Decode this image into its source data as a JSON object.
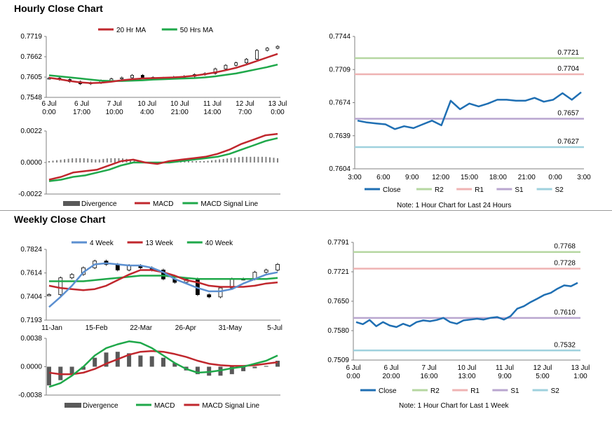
{
  "titles": {
    "hourly": "Hourly Close Chart",
    "weekly": "Weekly Close Chart"
  },
  "colors": {
    "ma_short": "#c0272d",
    "ma_long": "#1fa84a",
    "ma_4wk": "#5b8fd0",
    "close": "#1f6fb3",
    "r2": "#b6d7a1",
    "r1": "#efb3b3",
    "s1": "#b9a6cf",
    "s2": "#9fd1de",
    "divergence": "#808080"
  },
  "notes": {
    "hourly": "Note: 1 Hour Chart for Last 24 Hours",
    "weekly": "Note: 1 Hour Chart for Last 1 Week"
  },
  "chart_data": [
    {
      "id": "hourly_price",
      "type": "candlestick",
      "legend": [
        "20 Hr MA",
        "50 Hrs MA"
      ],
      "y_ticks": [
        "0.7719",
        "0.7662",
        "0.7605",
        "0.7548"
      ],
      "ylim": [
        0.7548,
        0.7719
      ],
      "x_ticks": [
        [
          "6 Jul",
          "0:00"
        ],
        [
          "6 Jul",
          "17:00"
        ],
        [
          "7 Jul",
          "10:00"
        ],
        [
          "10 Jul",
          "4:00"
        ],
        [
          "10 Jul",
          "21:00"
        ],
        [
          "11 Jul",
          "14:00"
        ],
        [
          "12 Jul",
          "7:00"
        ],
        [
          "13 Jul",
          "0:00"
        ]
      ],
      "series": [
        {
          "name": "20 Hr MA",
          "values": [
            0.7603,
            0.7599,
            0.7594,
            0.759,
            0.7588,
            0.7589,
            0.7592,
            0.7596,
            0.7599,
            0.7601,
            0.7602,
            0.7603,
            0.7604,
            0.7606,
            0.7609,
            0.7613,
            0.7618,
            0.7624,
            0.7631,
            0.764,
            0.765,
            0.766,
            0.767
          ]
        },
        {
          "name": "50 Hrs MA",
          "values": [
            0.761,
            0.7607,
            0.7604,
            0.7601,
            0.7598,
            0.7595,
            0.7594,
            0.7594,
            0.7595,
            0.7596,
            0.7598,
            0.7599,
            0.76,
            0.7601,
            0.7602,
            0.7604,
            0.7607,
            0.7611,
            0.7615,
            0.7621,
            0.7627,
            0.7633,
            0.764
          ]
        },
        {
          "name": "Close",
          "values": [
            0.7602,
            0.7598,
            0.7592,
            0.7586,
            0.7589,
            0.7595,
            0.76,
            0.7603,
            0.761,
            0.7604,
            0.7601,
            0.7602,
            0.7605,
            0.7607,
            0.7612,
            0.7615,
            0.7628,
            0.7638,
            0.7645,
            0.7655,
            0.768,
            0.7686,
            0.7691
          ]
        }
      ]
    },
    {
      "id": "hourly_macd",
      "type": "bar+line",
      "legend": [
        "Divergence",
        "MACD",
        "MACD Signal Line"
      ],
      "y_ticks": [
        "0.0022",
        "0.0000",
        "-0.0022"
      ],
      "ylim": [
        -0.0022,
        0.0022
      ],
      "series": [
        {
          "name": "MACD",
          "values": [
            -0.0012,
            -0.001,
            -0.0007,
            -0.0006,
            -0.0005,
            -0.0002,
            0.0001,
            0.0002,
            0.0,
            -0.0001,
            0.0001,
            0.0002,
            0.0003,
            0.0004,
            0.0006,
            0.0009,
            0.0013,
            0.0016,
            0.0019,
            0.002
          ]
        },
        {
          "name": "MACD Signal Line",
          "values": [
            -0.0013,
            -0.0012,
            -0.001,
            -0.0009,
            -0.0007,
            -0.0005,
            -0.0002,
            0.0,
            0.0,
            0.0,
            0.0,
            0.0001,
            0.0002,
            0.0003,
            0.0004,
            0.0006,
            0.0009,
            0.0012,
            0.0015,
            0.0017
          ]
        },
        {
          "name": "Divergence",
          "values": [
            0.0001,
            0.0002,
            0.0003,
            0.0003,
            0.0002,
            0.0003,
            0.0003,
            0.0002,
            0.0,
            -0.0001,
            0.0001,
            0.0001,
            0.0001,
            0.0001,
            0.0002,
            0.0003,
            0.0004,
            0.0004,
            0.0004,
            0.0003
          ]
        }
      ]
    },
    {
      "id": "hourly_24h",
      "type": "line",
      "y_ticks": [
        "0.7744",
        "0.7709",
        "0.7674",
        "0.7639",
        "0.7604"
      ],
      "ylim": [
        0.7604,
        0.7744
      ],
      "x_ticks": [
        "3:00",
        "6:00",
        "9:00",
        "12:00",
        "15:00",
        "18:00",
        "21:00",
        "0:00",
        "3:00"
      ],
      "legend": [
        "Close",
        "R2",
        "R1",
        "S1",
        "S2"
      ],
      "levels": [
        {
          "name": "R2",
          "value": 0.7721,
          "label": "0.7721"
        },
        {
          "name": "R1",
          "value": 0.7704,
          "label": "0.7704"
        },
        {
          "name": "S1",
          "value": 0.7657,
          "label": "0.7657"
        },
        {
          "name": "S2",
          "value": 0.7627,
          "label": "0.7627"
        }
      ],
      "series": [
        {
          "name": "Close",
          "values": [
            0.7655,
            0.7653,
            0.7652,
            0.7651,
            0.7646,
            0.7649,
            0.7647,
            0.7651,
            0.7655,
            0.765,
            0.7676,
            0.7667,
            0.7673,
            0.767,
            0.7673,
            0.7677,
            0.7677,
            0.7676,
            0.7676,
            0.7679,
            0.7675,
            0.7677,
            0.7684,
            0.7677,
            0.7685
          ]
        }
      ]
    },
    {
      "id": "weekly_price",
      "type": "candlestick",
      "legend": [
        "4 Week",
        "13 Week",
        "40 Week"
      ],
      "y_ticks": [
        "0.7824",
        "0.7614",
        "0.7404",
        "0.7193"
      ],
      "ylim": [
        0.7193,
        0.7824
      ],
      "x_ticks": [
        "11-Jan",
        "15-Feb",
        "22-Mar",
        "26-Apr",
        "31-May",
        "5-Jul"
      ],
      "series": [
        {
          "name": "4 Week",
          "values": [
            0.731,
            0.74,
            0.75,
            0.762,
            0.769,
            0.77,
            0.769,
            0.768,
            0.768,
            0.766,
            0.762,
            0.756,
            0.752,
            0.748,
            0.745,
            0.745,
            0.747,
            0.752,
            0.756,
            0.76,
            0.762
          ]
        },
        {
          "name": "13 Week",
          "values": [
            0.75,
            0.748,
            0.747,
            0.746,
            0.747,
            0.75,
            0.755,
            0.76,
            0.764,
            0.764,
            0.762,
            0.759,
            0.755,
            0.753,
            0.75,
            0.749,
            0.749,
            0.749,
            0.75,
            0.752,
            0.753
          ]
        },
        {
          "name": "40 Week",
          "values": [
            0.754,
            0.754,
            0.754,
            0.754,
            0.755,
            0.756,
            0.757,
            0.758,
            0.759,
            0.759,
            0.759,
            0.758,
            0.757,
            0.756,
            0.756,
            0.756,
            0.756,
            0.756,
            0.756,
            0.756,
            0.757
          ]
        },
        {
          "name": "Close",
          "values": [
            0.742,
            0.757,
            0.76,
            0.766,
            0.772,
            0.769,
            0.764,
            0.768,
            0.766,
            0.764,
            0.756,
            0.753,
            0.756,
            0.742,
            0.74,
            0.748,
            0.756,
            0.756,
            0.762,
            0.764,
            0.769
          ]
        }
      ]
    },
    {
      "id": "weekly_macd",
      "type": "bar+line",
      "legend": [
        "Divergence",
        "MACD",
        "MACD Signal Line"
      ],
      "y_ticks": [
        "0.0038",
        "0.0000",
        "-0.0038"
      ],
      "ylim": [
        -0.0038,
        0.0038
      ],
      "series": [
        {
          "name": "MACD",
          "values": [
            -0.0027,
            -0.0022,
            -0.0012,
            0.0,
            0.0015,
            0.0025,
            0.003,
            0.0034,
            0.0032,
            0.0025,
            0.0015,
            0.0005,
            -0.0003,
            -0.0008,
            -0.0007,
            -0.0005,
            -0.0002,
            0.0,
            0.0004,
            0.0008,
            0.0015
          ]
        },
        {
          "name": "MACD Signal Line",
          "values": [
            -0.0008,
            -0.001,
            -0.001,
            -0.0008,
            -0.0003,
            0.0004,
            0.001,
            0.0016,
            0.002,
            0.0021,
            0.002,
            0.0017,
            0.0013,
            0.0008,
            0.0004,
            0.0002,
            0.0001,
            0.0001,
            0.0002,
            0.0004,
            0.0006
          ]
        },
        {
          "name": "Divergence",
          "values": [
            -0.0025,
            -0.0018,
            -0.001,
            -0.0004,
            0.0012,
            0.0019,
            0.002,
            0.0018,
            0.0015,
            0.0014,
            0.0012,
            0.0005,
            -0.0005,
            -0.001,
            -0.0012,
            -0.0012,
            -0.001,
            -0.0006,
            -0.0002,
            0.0001,
            0.0008
          ]
        }
      ]
    },
    {
      "id": "weekly_1w",
      "type": "line",
      "y_ticks": [
        "0.7791",
        "0.7721",
        "0.7650",
        "0.7580",
        "0.7509"
      ],
      "ylim": [
        0.7509,
        0.7791
      ],
      "x_ticks": [
        [
          "6 Jul",
          "0:00"
        ],
        [
          "6 Jul",
          "20:00"
        ],
        [
          "7 Jul",
          "16:00"
        ],
        [
          "10 Jul",
          "13:00"
        ],
        [
          "11 Jul",
          "9:00"
        ],
        [
          "12 Jul",
          "5:00"
        ],
        [
          "13 Jul",
          "1:00"
        ]
      ],
      "legend": [
        "Close",
        "R2",
        "R1",
        "S1",
        "S2"
      ],
      "levels": [
        {
          "name": "R2",
          "value": 0.7768,
          "label": "0.7768"
        },
        {
          "name": "R1",
          "value": 0.7728,
          "label": "0.7728"
        },
        {
          "name": "S1",
          "value": 0.761,
          "label": "0.7610"
        },
        {
          "name": "S2",
          "value": 0.7532,
          "label": "0.7532"
        }
      ],
      "series": [
        {
          "name": "Close",
          "values": [
            0.76,
            0.7595,
            0.7605,
            0.759,
            0.76,
            0.7592,
            0.7588,
            0.7596,
            0.759,
            0.76,
            0.7604,
            0.7602,
            0.7605,
            0.761,
            0.76,
            0.7596,
            0.7604,
            0.7606,
            0.7608,
            0.7606,
            0.761,
            0.7612,
            0.7606,
            0.7614,
            0.7632,
            0.7638,
            0.7648,
            0.7656,
            0.7665,
            0.767,
            0.768,
            0.7688,
            0.7686,
            0.7694
          ]
        }
      ]
    }
  ]
}
